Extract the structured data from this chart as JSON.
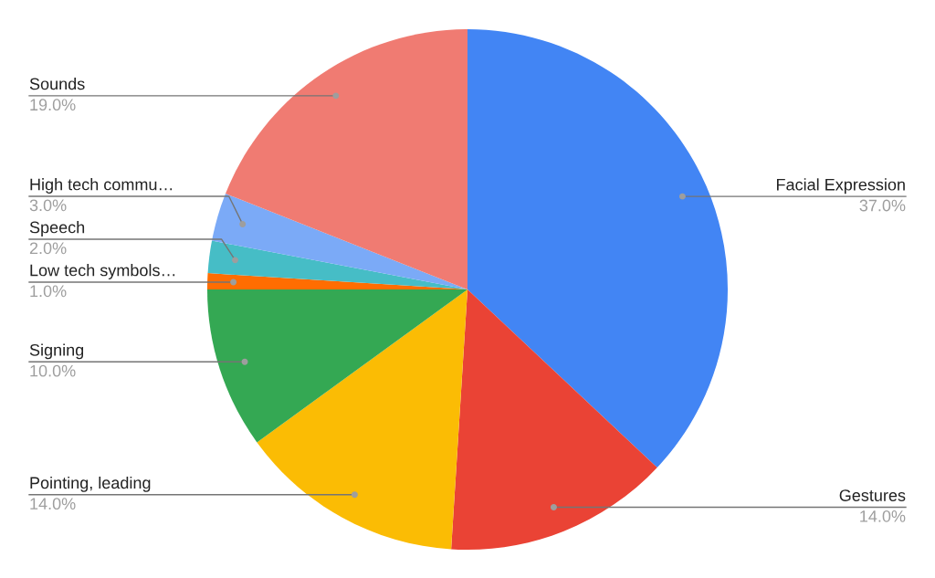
{
  "chart_data": {
    "type": "pie",
    "categories": [
      "Facial Expression",
      "Gestures",
      "Pointing, leading",
      "Signing",
      "Low tech symbols…",
      "Speech",
      "High tech commu…",
      "Sounds"
    ],
    "values": [
      37,
      14,
      14,
      10,
      1,
      2,
      3,
      19
    ],
    "colors": [
      "#4285f4",
      "#ea4335",
      "#fbbc04",
      "#34a853",
      "#ff6d01",
      "#46bdc6",
      "#7baaf7",
      "#f07b72"
    ],
    "value_labels": [
      "37.0%",
      "14.0%",
      "14.0%",
      "10.0%",
      "1.0%",
      "2.0%",
      "3.0%",
      "19.0%"
    ],
    "legend": false
  }
}
